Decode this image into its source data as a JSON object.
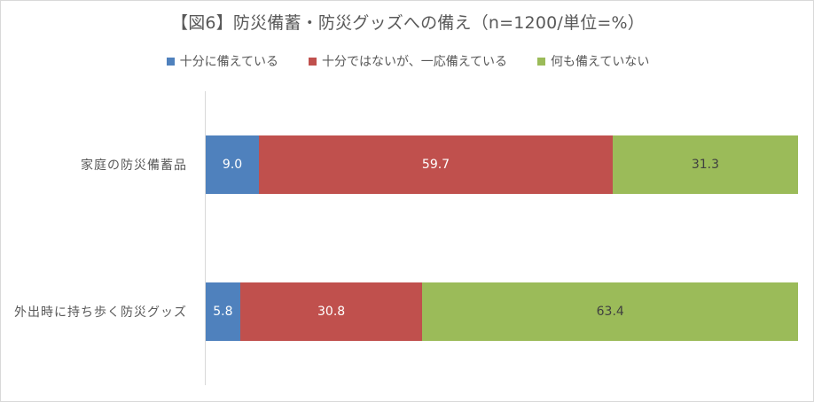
{
  "chart_data": {
    "type": "bar",
    "orientation": "horizontal",
    "stacked": true,
    "normalized_100": true,
    "title": "【図6】防災備蓄・防災グッズへの備え（n=1200/単位=%）",
    "xlabel": "",
    "ylabel": "",
    "xlim": [
      0,
      100
    ],
    "grid": false,
    "legend_position": "top",
    "categories": [
      "家庭の防災備蓄品",
      "外出時に持ち歩く防災グッズ"
    ],
    "series": [
      {
        "name": "十分に備えている",
        "color": "#4f81bd",
        "values": [
          9.0,
          5.8
        ]
      },
      {
        "name": "十分ではないが、一応備えている",
        "color": "#c0504d",
        "values": [
          59.7,
          30.8
        ]
      },
      {
        "name": "何も備えていない",
        "color": "#9bbb59",
        "values": [
          31.3,
          63.4
        ]
      }
    ]
  },
  "labels": {
    "title": "【図6】防災備蓄・防災グッズへの備え（n=1200/単位=%）",
    "legend": [
      "十分に備えている",
      "十分ではないが、一応備えている",
      "何も備えていない"
    ],
    "categories": [
      "家庭の防災備蓄品",
      "外出時に持ち歩く防災グッズ"
    ],
    "bar0": [
      "9.0",
      "59.7",
      "31.3"
    ],
    "bar1": [
      "5.8",
      "30.8",
      "63.4"
    ]
  },
  "colors": [
    "#4f81bd",
    "#c0504d",
    "#9bbb59"
  ]
}
